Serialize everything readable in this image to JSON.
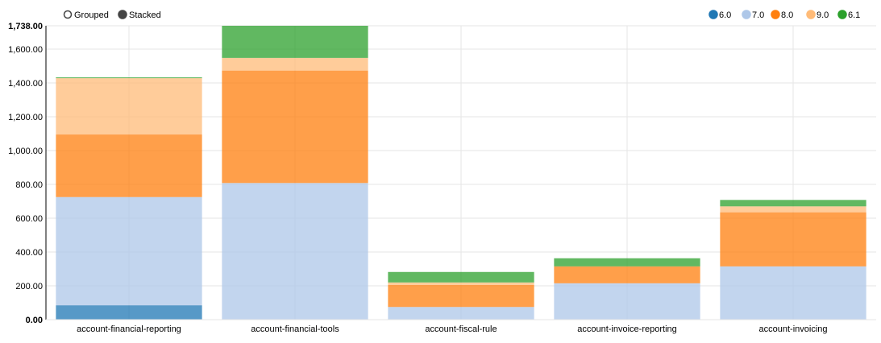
{
  "controls": {
    "grouped_label": "Grouped",
    "stacked_label": "Stacked",
    "selected": "Stacked"
  },
  "chart_data": {
    "type": "bar",
    "stacked": true,
    "categories": [
      "account-financial-reporting",
      "account-financial-tools",
      "account-fiscal-rule",
      "account-invoice-reporting",
      "account-invoicing"
    ],
    "series": [
      {
        "name": "6.0",
        "color": "#1f77b4",
        "values": [
          85,
          0,
          0,
          0,
          0
        ]
      },
      {
        "name": "7.0",
        "color": "#aec7e8",
        "values": [
          640,
          808,
          75,
          215,
          315
        ]
      },
      {
        "name": "8.0",
        "color": "#ff7f0e",
        "values": [
          370,
          665,
          130,
          100,
          320
        ]
      },
      {
        "name": "9.0",
        "color": "#ffbb78",
        "values": [
          333,
          75,
          15,
          0,
          35
        ]
      },
      {
        "name": "6.1",
        "color": "#2ca02c",
        "values": [
          5,
          190,
          62,
          48,
          38
        ]
      }
    ],
    "ylim": [
      0,
      1738
    ],
    "yticks": [
      "0.00",
      "200.00",
      "400.00",
      "600.00",
      "800.00",
      "1,000.00",
      "1,200.00",
      "1,400.00",
      "1,600.00",
      "1,738.00"
    ],
    "grid": true,
    "legend_position": "top-right"
  }
}
